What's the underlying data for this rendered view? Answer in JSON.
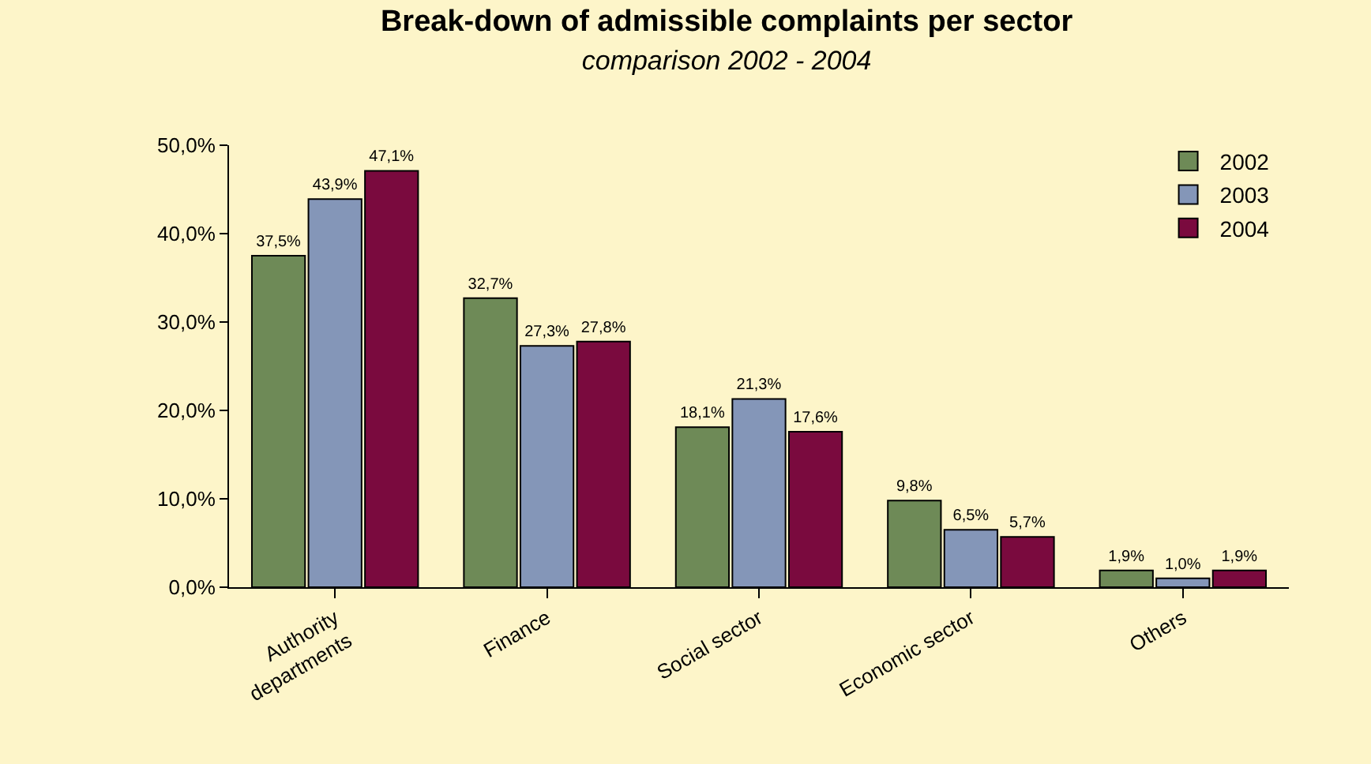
{
  "chart_data": {
    "type": "bar",
    "title": "Break-down of admissible complaints per sector",
    "subtitle": "comparison 2002 - 2004",
    "categories": [
      "Authority departments",
      "Finance",
      "Social sector",
      "Economic sector",
      "Others"
    ],
    "series": [
      {
        "name": "2002",
        "color": "#6e8a57",
        "values": [
          37.5,
          32.7,
          18.1,
          9.8,
          1.9
        ],
        "value_labels": [
          "37,5%",
          "32,7%",
          "18,1%",
          "9,8%",
          "1,9%"
        ]
      },
      {
        "name": "2003",
        "color": "#8496b8",
        "values": [
          43.9,
          27.3,
          21.3,
          6.5,
          1.0
        ],
        "value_labels": [
          "43,9%",
          "27,3%",
          "21,3%",
          "6,5%",
          "1,0%"
        ]
      },
      {
        "name": "2004",
        "color": "#7a0a3e",
        "values": [
          47.1,
          27.8,
          17.6,
          5.7,
          1.9
        ],
        "value_labels": [
          "47,1%",
          "27,8%",
          "17,6%",
          "5,7%",
          "1,9%"
        ]
      }
    ],
    "ylim": [
      0,
      50
    ],
    "yticks": [
      {
        "value": 0,
        "label": "0,0%"
      },
      {
        "value": 10,
        "label": "10,0%"
      },
      {
        "value": 20,
        "label": "20,0%"
      },
      {
        "value": 30,
        "label": "30,0%"
      },
      {
        "value": 40,
        "label": "40,0%"
      },
      {
        "value": 50,
        "label": "50,0%"
      }
    ],
    "grid": false,
    "legend": "top right"
  }
}
